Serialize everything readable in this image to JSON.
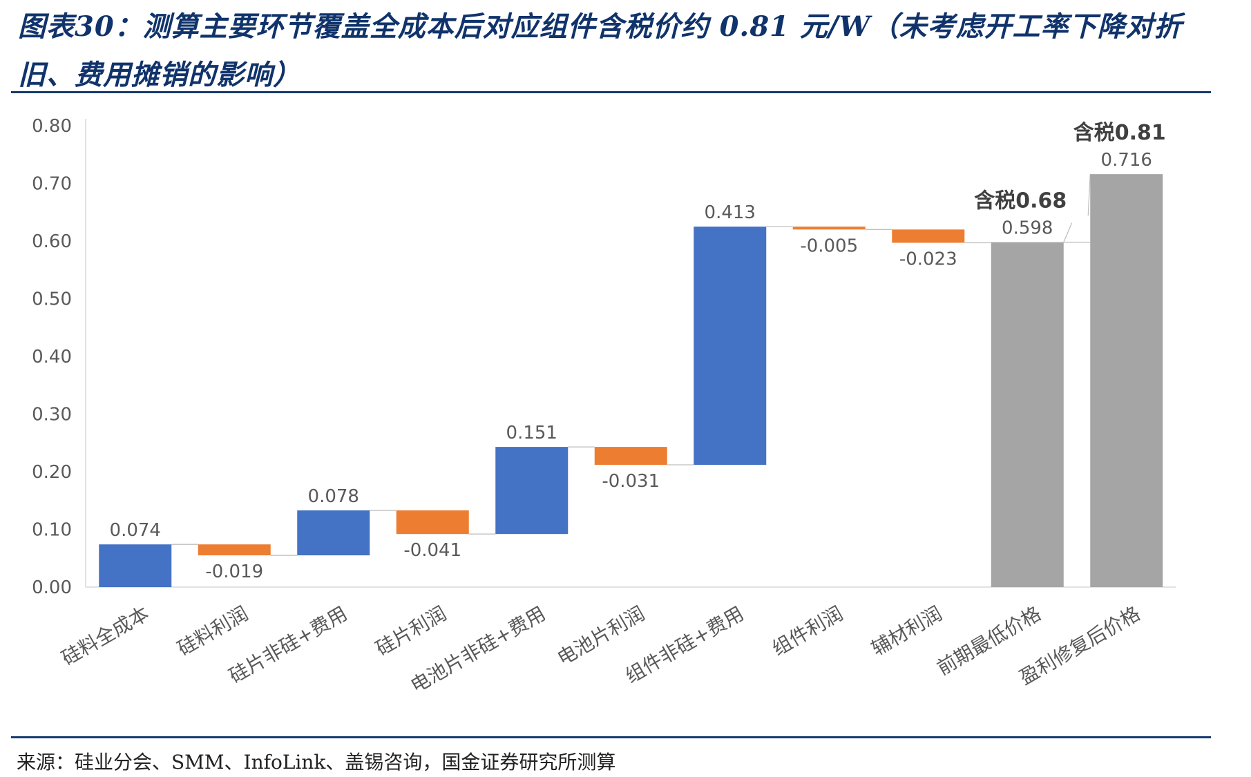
{
  "figure": {
    "title": "图表30：测算主要环节覆盖全成本后对应组件含税价约 0.81 元/W（未考虑开工率下降对折旧、费用摊销的影响）",
    "source": "来源：硅业分会、SMM、InfoLink、盖锡咨询，国金证券研究所测算"
  },
  "colors": {
    "increase": "#4472c4",
    "decrease": "#ed7d31",
    "total": "#a5a5a5",
    "title": "#10336b",
    "rule": "#16396e",
    "axis_text": "#595959"
  },
  "chart_data": {
    "type": "bar",
    "subtype": "waterfall",
    "title": "",
    "xlabel": "",
    "ylabel": "",
    "ylim": [
      0,
      0.8
    ],
    "yticks": [
      "0.00",
      "0.10",
      "0.20",
      "0.30",
      "0.40",
      "0.50",
      "0.60",
      "0.70",
      "0.80"
    ],
    "grid": false,
    "legend": "none",
    "categories": [
      "硅料全成本",
      "硅料利润",
      "硅片非硅+费用",
      "硅片利润",
      "电池片非硅+费用",
      "电池片利润",
      "组件非硅+费用",
      "组件利润",
      "辅材利润",
      "前期最低价格",
      "盈利修复后价格"
    ],
    "values": [
      0.074,
      -0.019,
      0.078,
      -0.041,
      0.151,
      -0.031,
      0.413,
      -0.005,
      -0.023,
      0.598,
      0.716
    ],
    "value_labels": [
      "0.074",
      "-0.019",
      "0.078",
      "-0.041",
      "0.151",
      "-0.031",
      "0.413",
      "-0.005",
      "-0.023",
      "0.598",
      "0.716"
    ],
    "kinds": [
      "increase",
      "decrease",
      "increase",
      "decrease",
      "increase",
      "decrease",
      "increase",
      "decrease",
      "decrease",
      "total",
      "total"
    ],
    "annotations": [
      {
        "category": "前期最低价格",
        "text": "含税0.68"
      },
      {
        "category": "盈利修复后价格",
        "text": "含税0.81"
      }
    ]
  }
}
